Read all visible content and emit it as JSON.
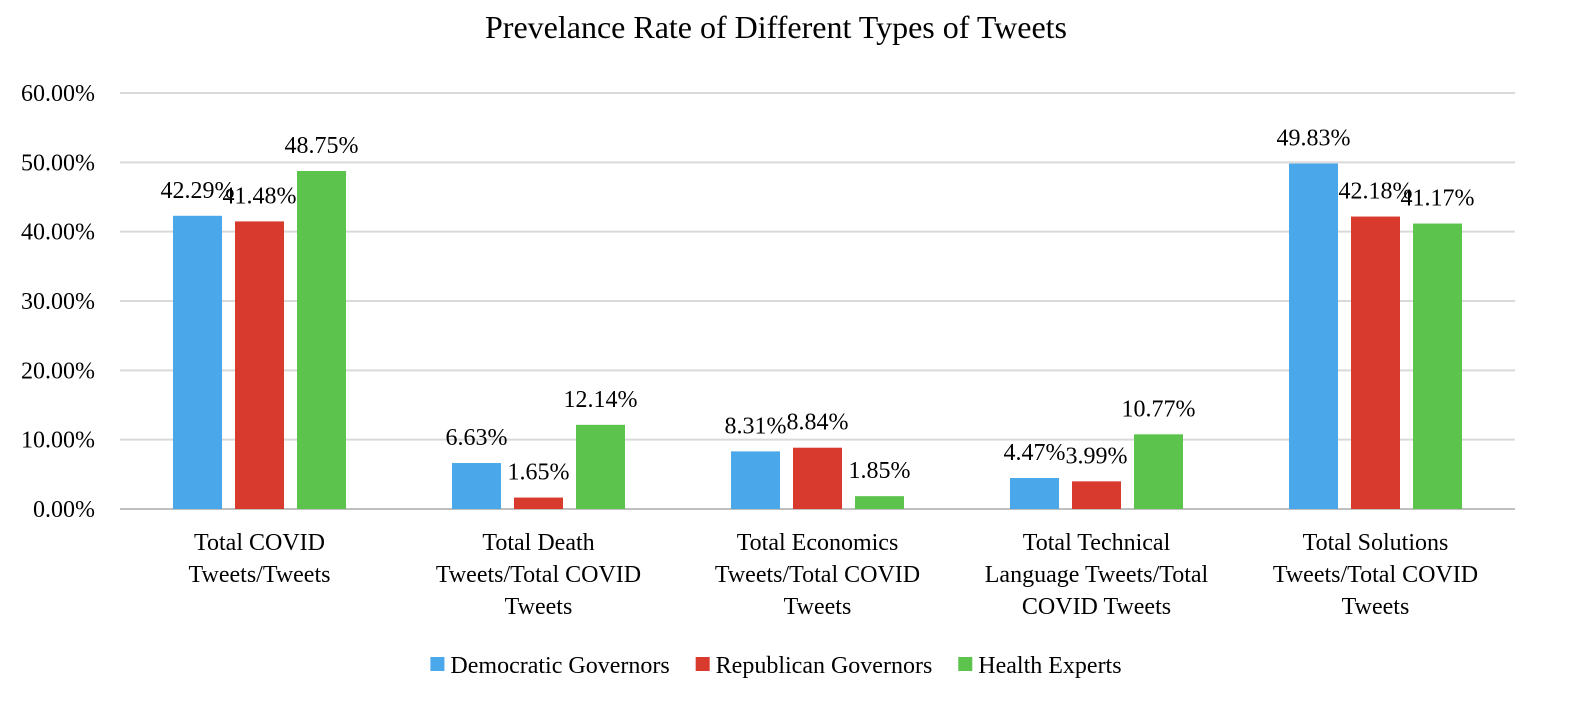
{
  "chart_data": {
    "type": "bar",
    "title": "Prevelance Rate of Different Types of Tweets",
    "xlabel": "",
    "ylabel": "",
    "ylim": [
      0,
      60
    ],
    "y_ticks": [
      "0.00%",
      "10.00%",
      "20.00%",
      "30.00%",
      "40.00%",
      "50.00%",
      "60.00%"
    ],
    "grid": true,
    "legend_position": "bottom",
    "categories": [
      [
        "Total COVID",
        "Tweets/Tweets"
      ],
      [
        "Total Death",
        "Tweets/Total COVID",
        "Tweets"
      ],
      [
        "Total Economics",
        "Tweets/Total COVID",
        "Tweets"
      ],
      [
        "Total Technical",
        "Language Tweets/Total",
        "COVID Tweets"
      ],
      [
        "Total Solutions",
        "Tweets/Total COVID",
        "Tweets"
      ]
    ],
    "series": [
      {
        "name": "Democratic Governors",
        "color": "#4aa8ea",
        "values": [
          42.29,
          6.63,
          8.31,
          4.47,
          49.83
        ],
        "labels": [
          "42.29%",
          "6.63%",
          "8.31%",
          "4.47%",
          "49.83%"
        ]
      },
      {
        "name": "Republican Governors",
        "color": "#d93a2e",
        "values": [
          41.48,
          1.65,
          8.84,
          3.99,
          42.18
        ],
        "labels": [
          "41.48%",
          "1.65%",
          "8.84%",
          "3.99%",
          "42.18%"
        ]
      },
      {
        "name": "Health Experts",
        "color": "#5cc44c",
        "values": [
          48.75,
          12.14,
          1.85,
          10.77,
          41.17
        ],
        "labels": [
          "48.75%",
          "12.14%",
          "1.85%",
          "10.77%",
          "41.17%"
        ]
      }
    ]
  }
}
